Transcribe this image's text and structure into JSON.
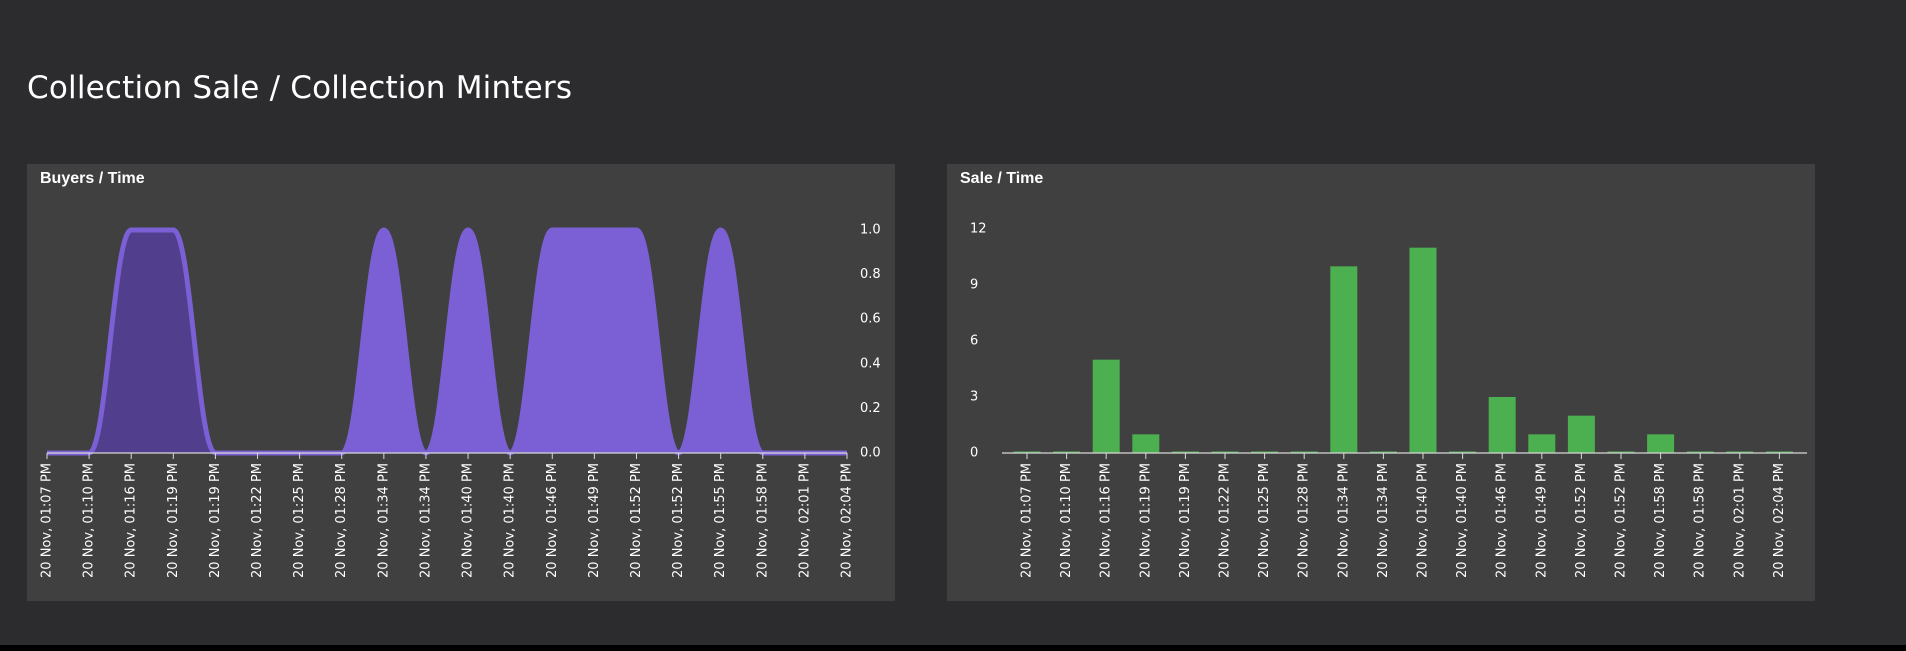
{
  "page": {
    "title": "Collection Sale / Collection Minters"
  },
  "colors": {
    "page_background": "#2c2c2e",
    "panel_background": "#404040",
    "area_fill": "#7a60d4",
    "area_dark": "#4a3880",
    "bar_fill": "#4caf50",
    "axis_text": "#ffffff"
  },
  "chart_data": [
    {
      "type": "area",
      "title": "Buyers / Time",
      "xlabel": "",
      "ylabel": "",
      "categories": [
        "20 Nov, 01:07 PM",
        "20 Nov, 01:10 PM",
        "20 Nov, 01:16 PM",
        "20 Nov, 01:19 PM",
        "20 Nov, 01:19 PM",
        "20 Nov, 01:22 PM",
        "20 Nov, 01:25 PM",
        "20 Nov, 01:28 PM",
        "20 Nov, 01:34 PM",
        "20 Nov, 01:34 PM",
        "20 Nov, 01:40 PM",
        "20 Nov, 01:40 PM",
        "20 Nov, 01:46 PM",
        "20 Nov, 01:49 PM",
        "20 Nov, 01:52 PM",
        "20 Nov, 01:52 PM",
        "20 Nov, 01:55 PM",
        "20 Nov, 01:58 PM",
        "20 Nov, 02:01 PM",
        "20 Nov, 02:04 PM"
      ],
      "series": [
        {
          "values": [
            0,
            0,
            1,
            1,
            0,
            0,
            0,
            0,
            1,
            0,
            1,
            0,
            1,
            1,
            1,
            0,
            1,
            0,
            0,
            0
          ]
        }
      ],
      "ylim": [
        0,
        1
      ],
      "y_ticks": [
        "1.0",
        "0.8",
        "0.6",
        "0.4",
        "0.2",
        "0.0"
      ],
      "y_axis_side": "right",
      "legend": "none",
      "grid": false
    },
    {
      "type": "bar",
      "title": "Sale / Time",
      "xlabel": "",
      "ylabel": "",
      "categories": [
        "20 Nov, 01:07 PM",
        "20 Nov, 01:10 PM",
        "20 Nov, 01:16 PM",
        "20 Nov, 01:19 PM",
        "20 Nov, 01:19 PM",
        "20 Nov, 01:22 PM",
        "20 Nov, 01:25 PM",
        "20 Nov, 01:28 PM",
        "20 Nov, 01:34 PM",
        "20 Nov, 01:34 PM",
        "20 Nov, 01:40 PM",
        "20 Nov, 01:40 PM",
        "20 Nov, 01:46 PM",
        "20 Nov, 01:49 PM",
        "20 Nov, 01:52 PM",
        "20 Nov, 01:52 PM",
        "20 Nov, 01:58 PM",
        "20 Nov, 01:58 PM",
        "20 Nov, 02:01 PM",
        "20 Nov, 02:04 PM"
      ],
      "series": [
        {
          "values": [
            0,
            0,
            5,
            1,
            0,
            0,
            0,
            0,
            10,
            0,
            11,
            0,
            3,
            1,
            2,
            0,
            1,
            0,
            0,
            0
          ]
        }
      ],
      "ylim": [
        0,
        12
      ],
      "y_ticks": [
        "12",
        "9",
        "6",
        "3",
        "0"
      ],
      "y_axis_side": "left",
      "legend": "none",
      "grid": false
    }
  ]
}
